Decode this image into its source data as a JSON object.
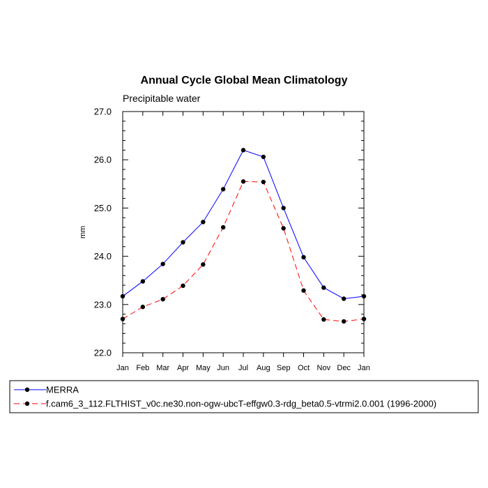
{
  "chart_data": {
    "type": "line",
    "title": "Annual Cycle Global Mean Climatology",
    "subtitle": "Precipitable water",
    "xlabel": "",
    "ylabel": "mm",
    "categories": [
      "Jan",
      "Feb",
      "Mar",
      "Apr",
      "May",
      "Jun",
      "Jul",
      "Aug",
      "Sep",
      "Oct",
      "Nov",
      "Dec",
      "Jan"
    ],
    "ylim": [
      22.0,
      27.0
    ],
    "yticks": [
      "22.0",
      "23.0",
      "24.0",
      "25.0",
      "26.0",
      "27.0"
    ],
    "grid": false,
    "legend_position": "bottom",
    "series": [
      {
        "name": "MERRA",
        "color": "#0000ff",
        "style": "solid",
        "values": [
          23.17,
          23.48,
          23.84,
          24.29,
          24.71,
          25.39,
          26.2,
          26.06,
          25.0,
          23.98,
          23.35,
          23.12,
          23.17
        ]
      },
      {
        "name": "f.cam6_3_112.FLTHIST_v0c.ne30.non-ogw-ubcT-effgw0.3-rdg_beta0.5-vtrmi2.0.001 (1996-2000)",
        "color": "#ff0000",
        "style": "dashed",
        "values": [
          22.7,
          22.95,
          23.11,
          23.39,
          23.83,
          24.6,
          25.55,
          25.54,
          24.58,
          23.29,
          22.69,
          22.65,
          22.7
        ]
      }
    ]
  }
}
